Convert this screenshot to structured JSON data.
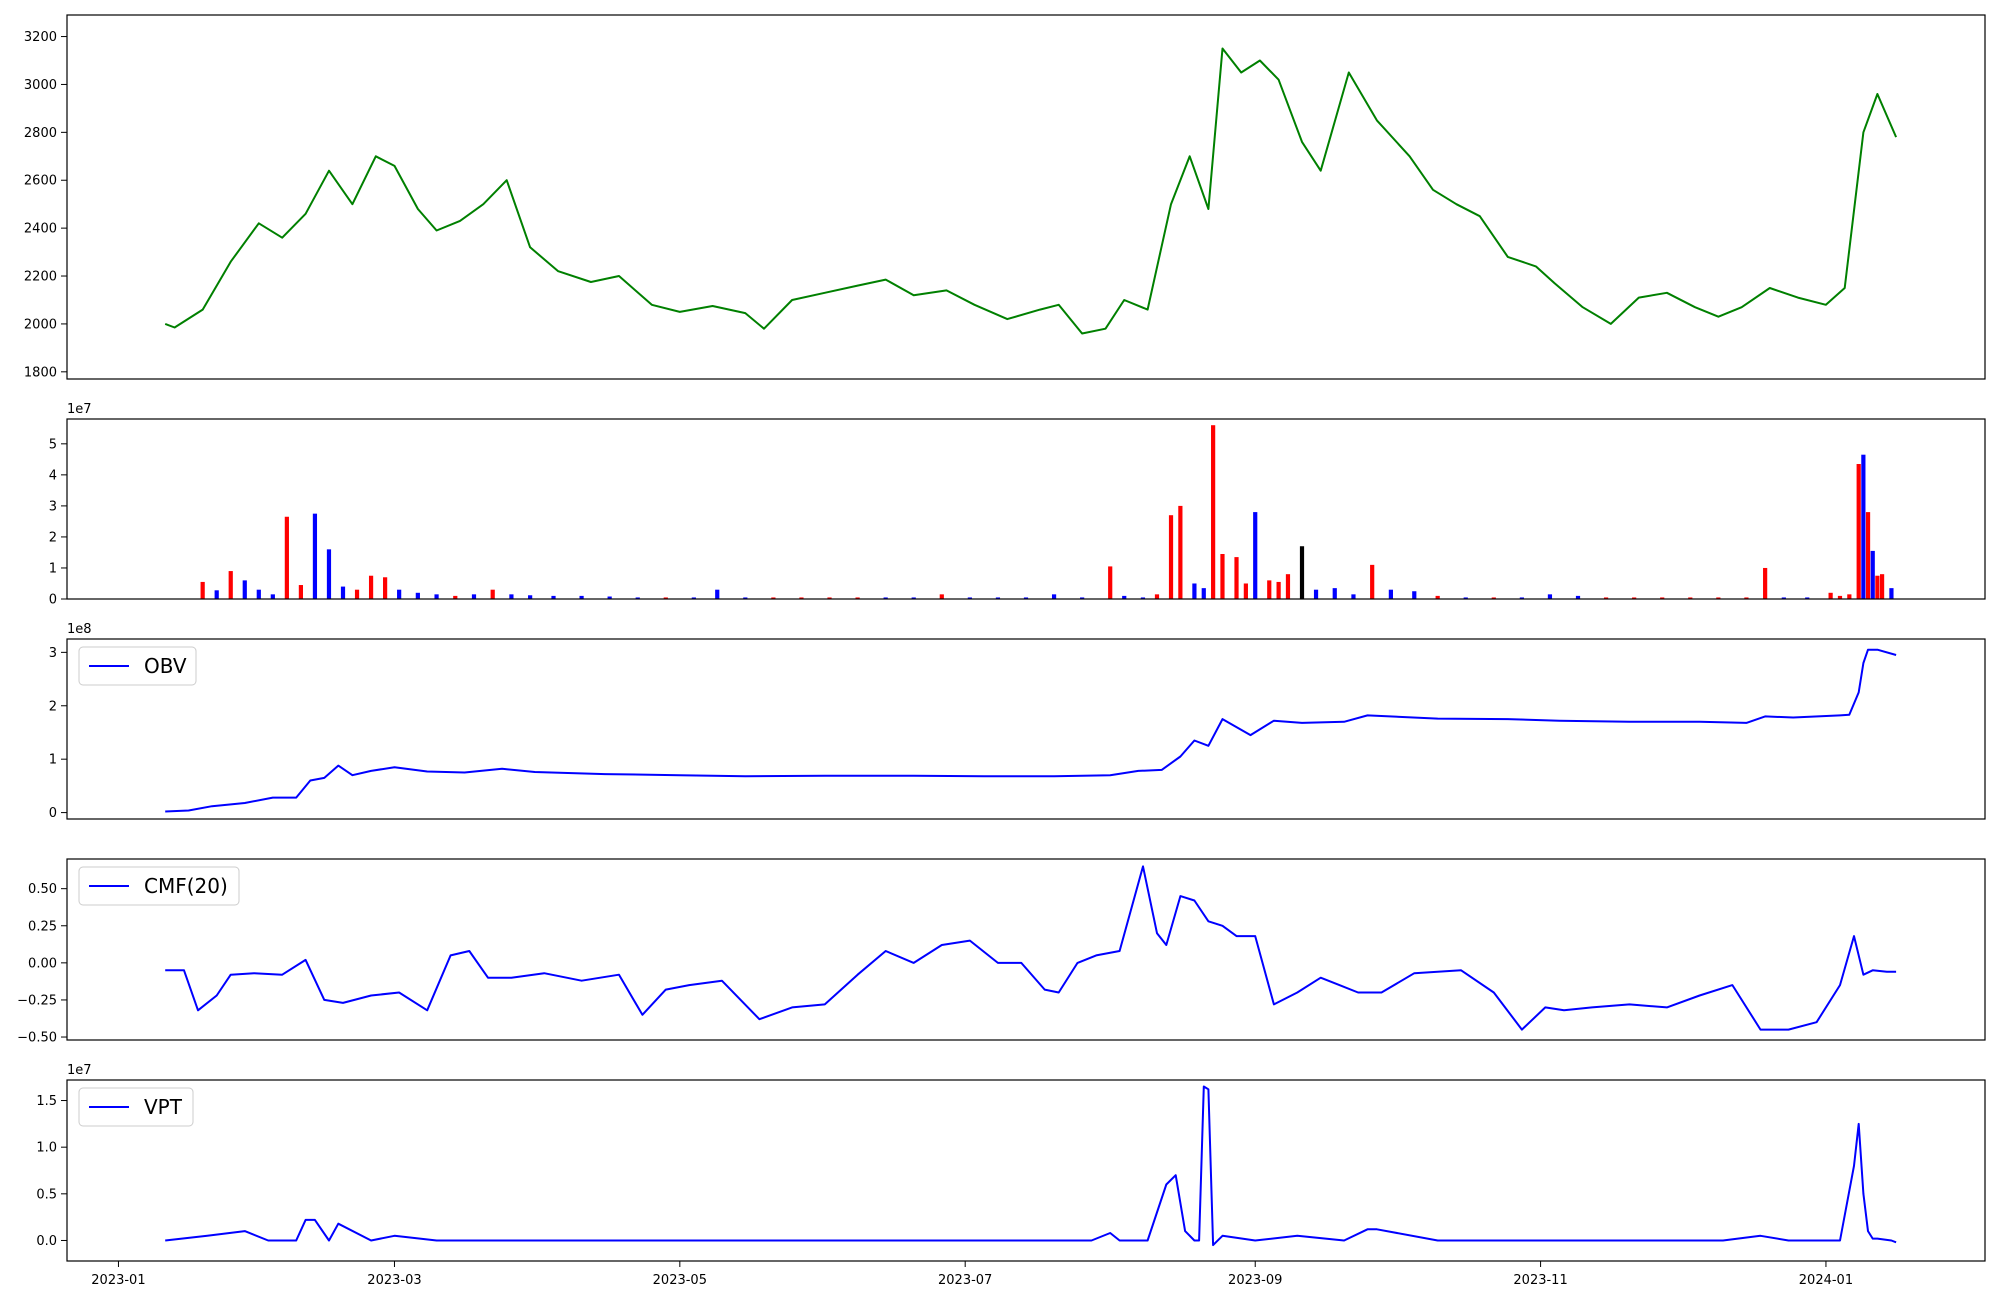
{
  "chart_data": [
    {
      "type": "line",
      "title": "",
      "xlabel": "",
      "ylabel": "",
      "color": "#008000",
      "ylim": [
        1770,
        3290
      ],
      "y_ticks": [
        1800,
        2000,
        2200,
        2400,
        2600,
        2800,
        3000,
        3200
      ],
      "x": [
        "2023-01-11",
        "2023-01-13",
        "2023-01-19",
        "2023-01-25",
        "2023-01-31",
        "2023-02-05",
        "2023-02-10",
        "2023-02-15",
        "2023-02-20",
        "2023-02-25",
        "2023-03-01",
        "2023-03-06",
        "2023-03-10",
        "2023-03-15",
        "2023-03-20",
        "2023-03-25",
        "2023-03-30",
        "2023-04-05",
        "2023-04-12",
        "2023-04-18",
        "2023-04-25",
        "2023-05-01",
        "2023-05-08",
        "2023-05-15",
        "2023-05-19",
        "2023-05-25",
        "2023-06-01",
        "2023-06-08",
        "2023-06-14",
        "2023-06-20",
        "2023-06-27",
        "2023-07-03",
        "2023-07-10",
        "2023-07-17",
        "2023-07-21",
        "2023-07-26",
        "2023-07-31",
        "2023-08-04",
        "2023-08-09",
        "2023-08-14",
        "2023-08-18",
        "2023-08-22",
        "2023-08-25",
        "2023-08-29",
        "2023-09-02",
        "2023-09-06",
        "2023-09-11",
        "2023-09-15",
        "2023-09-21",
        "2023-09-27",
        "2023-10-04",
        "2023-10-09",
        "2023-10-14",
        "2023-10-19",
        "2023-10-25",
        "2023-10-31",
        "2023-11-04",
        "2023-11-10",
        "2023-11-16",
        "2023-11-22",
        "2023-11-28",
        "2023-12-04",
        "2023-12-09",
        "2023-12-14",
        "2023-12-20",
        "2023-12-26",
        "2024-01-01",
        "2024-01-05",
        "2024-01-09",
        "2024-01-12",
        "2024-01-16"
      ],
      "y": [
        2000,
        1985,
        2060,
        2260,
        2420,
        2360,
        2460,
        2640,
        2500,
        2700,
        2660,
        2480,
        2390,
        2430,
        2500,
        2600,
        2320,
        2220,
        2175,
        2200,
        2080,
        2050,
        2075,
        2045,
        1980,
        2100,
        2130,
        2160,
        2185,
        2120,
        2140,
        2080,
        2020,
        2060,
        2080,
        1960,
        1980,
        2100,
        2060,
        2500,
        2700,
        2480,
        3150,
        3050,
        3100,
        3020,
        2760,
        2640,
        3050,
        2850,
        2700,
        2560,
        2500,
        2450,
        2280,
        2240,
        2170,
        2070,
        2000,
        2110,
        2130,
        2070,
        2030,
        2070,
        2150,
        2110,
        2080,
        2150,
        2800,
        2960,
        2780
      ],
      "series": []
    },
    {
      "type": "bar",
      "title": "",
      "offset_label": "1e7",
      "ylim": [
        0,
        5.8
      ],
      "y_ticks": [
        0,
        1,
        2,
        3,
        4,
        5
      ],
      "categories": [
        "2023-01-19",
        "2023-01-22",
        "2023-01-25",
        "2023-01-28",
        "2023-01-31",
        "2023-02-03",
        "2023-02-06",
        "2023-02-09",
        "2023-02-12",
        "2023-02-15",
        "2023-02-18",
        "2023-02-21",
        "2023-02-24",
        "2023-02-27",
        "2023-03-02",
        "2023-03-06",
        "2023-03-10",
        "2023-03-14",
        "2023-03-18",
        "2023-03-22",
        "2023-03-26",
        "2023-03-30",
        "2023-04-04",
        "2023-04-10",
        "2023-04-16",
        "2023-04-22",
        "2023-04-28",
        "2023-05-04",
        "2023-05-09",
        "2023-05-15",
        "2023-05-21",
        "2023-05-27",
        "2023-06-02",
        "2023-06-08",
        "2023-06-14",
        "2023-06-20",
        "2023-06-26",
        "2023-07-02",
        "2023-07-08",
        "2023-07-14",
        "2023-07-20",
        "2023-07-26",
        "2023-08-01",
        "2023-08-04",
        "2023-08-08",
        "2023-08-11",
        "2023-08-14",
        "2023-08-16",
        "2023-08-19",
        "2023-08-21",
        "2023-08-23",
        "2023-08-25",
        "2023-08-28",
        "2023-08-30",
        "2023-09-01",
        "2023-09-04",
        "2023-09-06",
        "2023-09-08",
        "2023-09-11",
        "2023-09-14",
        "2023-09-18",
        "2023-09-22",
        "2023-09-26",
        "2023-09-30",
        "2023-10-05",
        "2023-10-10",
        "2023-10-16",
        "2023-10-22",
        "2023-10-28",
        "2023-11-03",
        "2023-11-09",
        "2023-11-15",
        "2023-11-21",
        "2023-11-27",
        "2023-12-03",
        "2023-12-09",
        "2023-12-15",
        "2023-12-19",
        "2023-12-23",
        "2023-12-28",
        "2024-01-02",
        "2024-01-04",
        "2024-01-06",
        "2024-01-08",
        "2024-01-09",
        "2024-01-10",
        "2024-01-11",
        "2024-01-12",
        "2024-01-13",
        "2024-01-15"
      ],
      "values": [
        0.55,
        0.28,
        0.9,
        0.6,
        0.3,
        0.15,
        2.65,
        0.45,
        2.75,
        1.6,
        0.4,
        0.3,
        0.75,
        0.7,
        0.3,
        0.2,
        0.15,
        0.1,
        0.15,
        0.3,
        0.15,
        0.12,
        0.1,
        0.1,
        0.08,
        0.05,
        0.05,
        0.05,
        0.3,
        0.05,
        0.05,
        0.05,
        0.05,
        0.05,
        0.05,
        0.05,
        0.15,
        0.05,
        0.05,
        0.05,
        0.15,
        0.05,
        1.05,
        0.1,
        0.05,
        0.15,
        2.7,
        3.0,
        0.5,
        0.35,
        5.6,
        1.45,
        1.35,
        0.5,
        2.8,
        0.6,
        0.55,
        0.8,
        1.7,
        0.3,
        0.35,
        0.15,
        1.1,
        0.3,
        0.25,
        0.1,
        0.05,
        0.05,
        0.05,
        0.15,
        0.1,
        0.05,
        0.05,
        0.05,
        0.05,
        0.05,
        0.05,
        1.0,
        0.05,
        0.05,
        0.2,
        0.1,
        0.15,
        4.35,
        4.65,
        2.8,
        1.55,
        0.75,
        0.8,
        0.35
      ],
      "bar_colors": [
        "#ff0000",
        "#0000ff",
        "#ff0000",
        "#0000ff",
        "#0000ff",
        "#0000ff",
        "#ff0000",
        "#ff0000",
        "#0000ff",
        "#0000ff",
        "#0000ff",
        "#ff0000",
        "#ff0000",
        "#ff0000",
        "#0000ff",
        "#0000ff",
        "#0000ff",
        "#ff0000",
        "#0000ff",
        "#ff0000",
        "#0000ff",
        "#0000ff",
        "#0000ff",
        "#0000ff",
        "#0000ff",
        "#0000ff",
        "#ff0000",
        "#0000ff",
        "#0000ff",
        "#0000ff",
        "#ff0000",
        "#ff0000",
        "#ff0000",
        "#ff0000",
        "#0000ff",
        "#0000ff",
        "#ff0000",
        "#0000ff",
        "#0000ff",
        "#0000ff",
        "#0000ff",
        "#0000ff",
        "#ff0000",
        "#0000ff",
        "#0000ff",
        "#ff0000",
        "#ff0000",
        "#ff0000",
        "#0000ff",
        "#0000ff",
        "#ff0000",
        "#ff0000",
        "#ff0000",
        "#ff0000",
        "#0000ff",
        "#ff0000",
        "#ff0000",
        "#ff0000",
        "#000000",
        "#0000ff",
        "#0000ff",
        "#0000ff",
        "#ff0000",
        "#0000ff",
        "#0000ff",
        "#ff0000",
        "#0000ff",
        "#ff0000",
        "#0000ff",
        "#0000ff",
        "#0000ff",
        "#ff0000",
        "#ff0000",
        "#ff0000",
        "#ff0000",
        "#ff0000",
        "#ff0000",
        "#ff0000",
        "#0000ff",
        "#0000ff",
        "#ff0000",
        "#ff0000",
        "#ff0000",
        "#ff0000",
        "#0000ff",
        "#ff0000",
        "#0000ff",
        "#ff0000",
        "#ff0000",
        "#0000ff"
      ]
    },
    {
      "type": "line",
      "offset_label": "1e8",
      "color": "#0000ff",
      "legend": "top-left",
      "ylim": [
        -0.12,
        3.25
      ],
      "y_ticks": [
        0,
        1,
        2,
        3
      ],
      "x": [
        "2023-01-11",
        "2023-01-16",
        "2023-01-21",
        "2023-01-28",
        "2023-02-03",
        "2023-02-08",
        "2023-02-11",
        "2023-02-14",
        "2023-02-17",
        "2023-02-20",
        "2023-02-24",
        "2023-03-01",
        "2023-03-08",
        "2023-03-16",
        "2023-03-24",
        "2023-03-31",
        "2023-04-15",
        "2023-05-01",
        "2023-05-15",
        "2023-06-01",
        "2023-06-20",
        "2023-07-05",
        "2023-07-20",
        "2023-08-01",
        "2023-08-07",
        "2023-08-12",
        "2023-08-16",
        "2023-08-19",
        "2023-08-22",
        "2023-08-25",
        "2023-08-28",
        "2023-08-31",
        "2023-09-05",
        "2023-09-11",
        "2023-09-20",
        "2023-09-25",
        "2023-10-10",
        "2023-10-25",
        "2023-11-05",
        "2023-11-20",
        "2023-12-05",
        "2023-12-15",
        "2023-12-19",
        "2023-12-25",
        "2024-01-04",
        "2024-01-06",
        "2024-01-08",
        "2024-01-09",
        "2024-01-10",
        "2024-01-12",
        "2024-01-16"
      ],
      "y": [
        0.02,
        0.04,
        0.12,
        0.18,
        0.28,
        0.28,
        0.6,
        0.65,
        0.88,
        0.7,
        0.78,
        0.85,
        0.77,
        0.75,
        0.82,
        0.76,
        0.72,
        0.7,
        0.68,
        0.69,
        0.69,
        0.68,
        0.68,
        0.7,
        0.78,
        0.8,
        1.05,
        1.35,
        1.25,
        1.75,
        1.6,
        1.45,
        1.72,
        1.68,
        1.7,
        1.82,
        1.76,
        1.75,
        1.72,
        1.7,
        1.7,
        1.68,
        1.8,
        1.78,
        1.82,
        1.83,
        2.25,
        2.8,
        3.05,
        3.05,
        2.95
      ],
      "series": [
        {
          "name": "OBV"
        }
      ]
    },
    {
      "type": "line",
      "color": "#0000ff",
      "legend": "top-left",
      "ylim": [
        -0.52,
        0.7
      ],
      "y_ticks": [
        -0.5,
        -0.25,
        0.0,
        0.25,
        0.5
      ],
      "y_tick_labels": [
        "−0.50",
        "−0.25",
        "0.00",
        "0.25",
        "0.50"
      ],
      "x": [
        "2023-01-11",
        "2023-01-15",
        "2023-01-18",
        "2023-01-22",
        "2023-01-25",
        "2023-01-30",
        "2023-02-05",
        "2023-02-10",
        "2023-02-14",
        "2023-02-18",
        "2023-02-24",
        "2023-03-02",
        "2023-03-08",
        "2023-03-13",
        "2023-03-17",
        "2023-03-21",
        "2023-03-26",
        "2023-04-02",
        "2023-04-10",
        "2023-04-18",
        "2023-04-23",
        "2023-04-28",
        "2023-05-03",
        "2023-05-10",
        "2023-05-18",
        "2023-05-25",
        "2023-06-01",
        "2023-06-08",
        "2023-06-14",
        "2023-06-20",
        "2023-06-26",
        "2023-07-02",
        "2023-07-08",
        "2023-07-13",
        "2023-07-18",
        "2023-07-21",
        "2023-07-25",
        "2023-07-29",
        "2023-08-03",
        "2023-08-08",
        "2023-08-11",
        "2023-08-13",
        "2023-08-16",
        "2023-08-19",
        "2023-08-22",
        "2023-08-25",
        "2023-08-28",
        "2023-09-01",
        "2023-09-05",
        "2023-09-10",
        "2023-09-15",
        "2023-09-19",
        "2023-09-23",
        "2023-09-28",
        "2023-10-05",
        "2023-10-15",
        "2023-10-22",
        "2023-10-28",
        "2023-11-02",
        "2023-11-06",
        "2023-11-12",
        "2023-11-20",
        "2023-11-28",
        "2023-12-05",
        "2023-12-12",
        "2023-12-18",
        "2023-12-24",
        "2023-12-30",
        "2024-01-04",
        "2024-01-07",
        "2024-01-09",
        "2024-01-11",
        "2024-01-14",
        "2024-01-16"
      ],
      "y": [
        -0.05,
        -0.05,
        -0.32,
        -0.22,
        -0.08,
        -0.07,
        -0.08,
        0.02,
        -0.25,
        -0.27,
        -0.22,
        -0.2,
        -0.32,
        0.05,
        0.08,
        -0.1,
        -0.1,
        -0.07,
        -0.12,
        -0.08,
        -0.35,
        -0.18,
        -0.15,
        -0.12,
        -0.38,
        -0.3,
        -0.28,
        -0.08,
        0.08,
        0.0,
        0.12,
        0.15,
        0.0,
        0.0,
        -0.18,
        -0.2,
        0.0,
        0.05,
        0.08,
        0.65,
        0.2,
        0.12,
        0.45,
        0.42,
        0.28,
        0.25,
        0.18,
        0.18,
        -0.28,
        -0.2,
        -0.1,
        -0.15,
        -0.2,
        -0.2,
        -0.07,
        -0.05,
        -0.2,
        -0.45,
        -0.3,
        -0.32,
        -0.3,
        -0.28,
        -0.3,
        -0.22,
        -0.15,
        -0.45,
        -0.45,
        -0.4,
        -0.15,
        0.18,
        -0.08,
        -0.05,
        -0.06,
        -0.06
      ],
      "series": [
        {
          "name": "CMF(20)"
        }
      ]
    },
    {
      "type": "line",
      "offset_label": "1e7",
      "color": "#0000ff",
      "legend": "top-left",
      "ylim": [
        -0.22,
        1.72
      ],
      "y_ticks": [
        0.0,
        0.5,
        1.0,
        1.5
      ],
      "y_tick_labels": [
        "0.0",
        "0.5",
        "1.0",
        "1.5"
      ],
      "x": [
        "2023-01-11",
        "2023-01-20",
        "2023-01-28",
        "2023-02-02",
        "2023-02-08",
        "2023-02-10",
        "2023-02-12",
        "2023-02-15",
        "2023-02-17",
        "2023-02-24",
        "2023-03-01",
        "2023-03-10",
        "2023-03-25",
        "2023-04-10",
        "2023-05-01",
        "2023-06-01",
        "2023-06-25",
        "2023-07-15",
        "2023-07-28",
        "2023-08-01",
        "2023-08-03",
        "2023-08-09",
        "2023-08-13",
        "2023-08-15",
        "2023-08-17",
        "2023-08-19",
        "2023-08-20",
        "2023-08-21",
        "2023-08-22",
        "2023-08-23",
        "2023-08-25",
        "2023-09-01",
        "2023-09-10",
        "2023-09-20",
        "2023-09-25",
        "2023-09-27",
        "2023-10-10",
        "2023-10-25",
        "2023-11-05",
        "2023-11-20",
        "2023-12-10",
        "2023-12-18",
        "2023-12-24",
        "2024-01-04",
        "2024-01-07",
        "2024-01-08",
        "2024-01-09",
        "2024-01-10",
        "2024-01-11",
        "2024-01-12",
        "2024-01-15",
        "2024-01-16"
      ],
      "y": [
        0.0,
        0.05,
        0.1,
        0.0,
        0.0,
        0.22,
        0.22,
        0.0,
        0.18,
        0.0,
        0.05,
        0.0,
        0.0,
        0.0,
        0.0,
        0.0,
        0.0,
        0.0,
        0.0,
        0.08,
        0.0,
        0.0,
        0.6,
        0.7,
        0.1,
        0.0,
        0.0,
        1.65,
        1.62,
        -0.05,
        0.05,
        0.0,
        0.05,
        0.0,
        0.12,
        0.12,
        0.0,
        0.0,
        0.0,
        0.0,
        0.0,
        0.05,
        0.0,
        0.0,
        0.8,
        1.25,
        0.5,
        0.1,
        0.02,
        0.02,
        0.0,
        -0.02
      ],
      "series": [
        {
          "name": "VPT"
        }
      ]
    }
  ],
  "x_axis": {
    "ticks": [
      "2023-01",
      "2023-03",
      "2023-05",
      "2023-07",
      "2023-09",
      "2023-11",
      "2024-01"
    ],
    "range": [
      "2022-12-21",
      "2024-02-04"
    ]
  }
}
